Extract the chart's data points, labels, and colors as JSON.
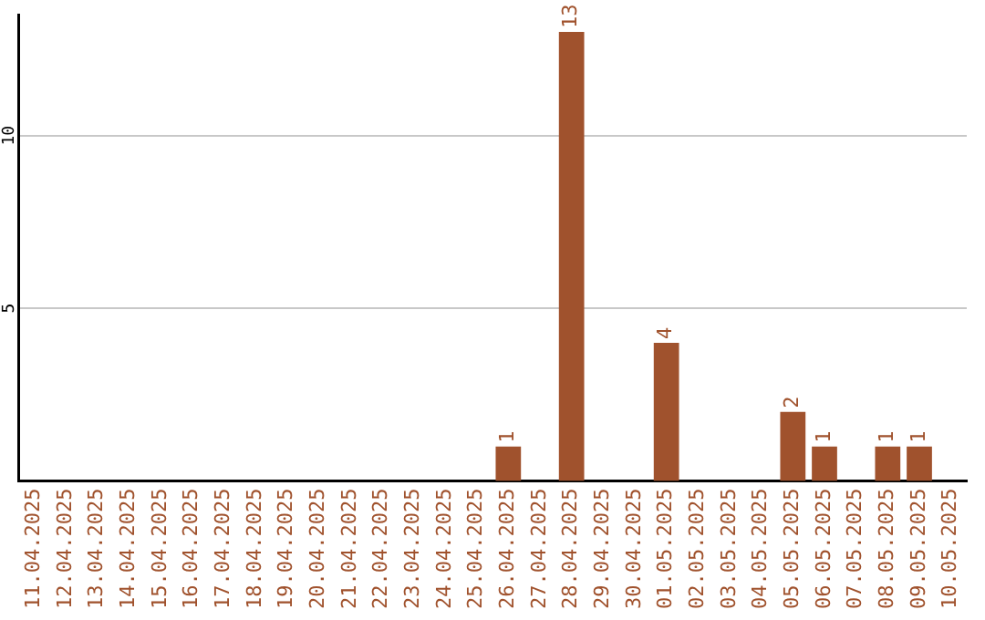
{
  "chart_data": {
    "type": "bar",
    "categories": [
      "11.04.2025",
      "12.04.2025",
      "13.04.2025",
      "14.04.2025",
      "15.04.2025",
      "16.04.2025",
      "17.04.2025",
      "18.04.2025",
      "19.04.2025",
      "20.04.2025",
      "21.04.2025",
      "22.04.2025",
      "23.04.2025",
      "24.04.2025",
      "25.04.2025",
      "26.04.2025",
      "27.04.2025",
      "28.04.2025",
      "29.04.2025",
      "30.04.2025",
      "01.05.2025",
      "02.05.2025",
      "03.05.2025",
      "04.05.2025",
      "05.05.2025",
      "06.05.2025",
      "07.05.2025",
      "08.05.2025",
      "09.05.2025",
      "10.05.2025"
    ],
    "values": [
      null,
      null,
      null,
      null,
      null,
      null,
      null,
      null,
      null,
      null,
      null,
      null,
      null,
      null,
      null,
      1,
      null,
      13,
      null,
      null,
      4,
      null,
      null,
      null,
      2,
      1,
      null,
      1,
      1,
      null
    ],
    "color": "#a0522d",
    "ylim": [
      0,
      13.5
    ],
    "yticks": [
      5,
      10
    ],
    "grid": "y",
    "data_labels": true
  }
}
